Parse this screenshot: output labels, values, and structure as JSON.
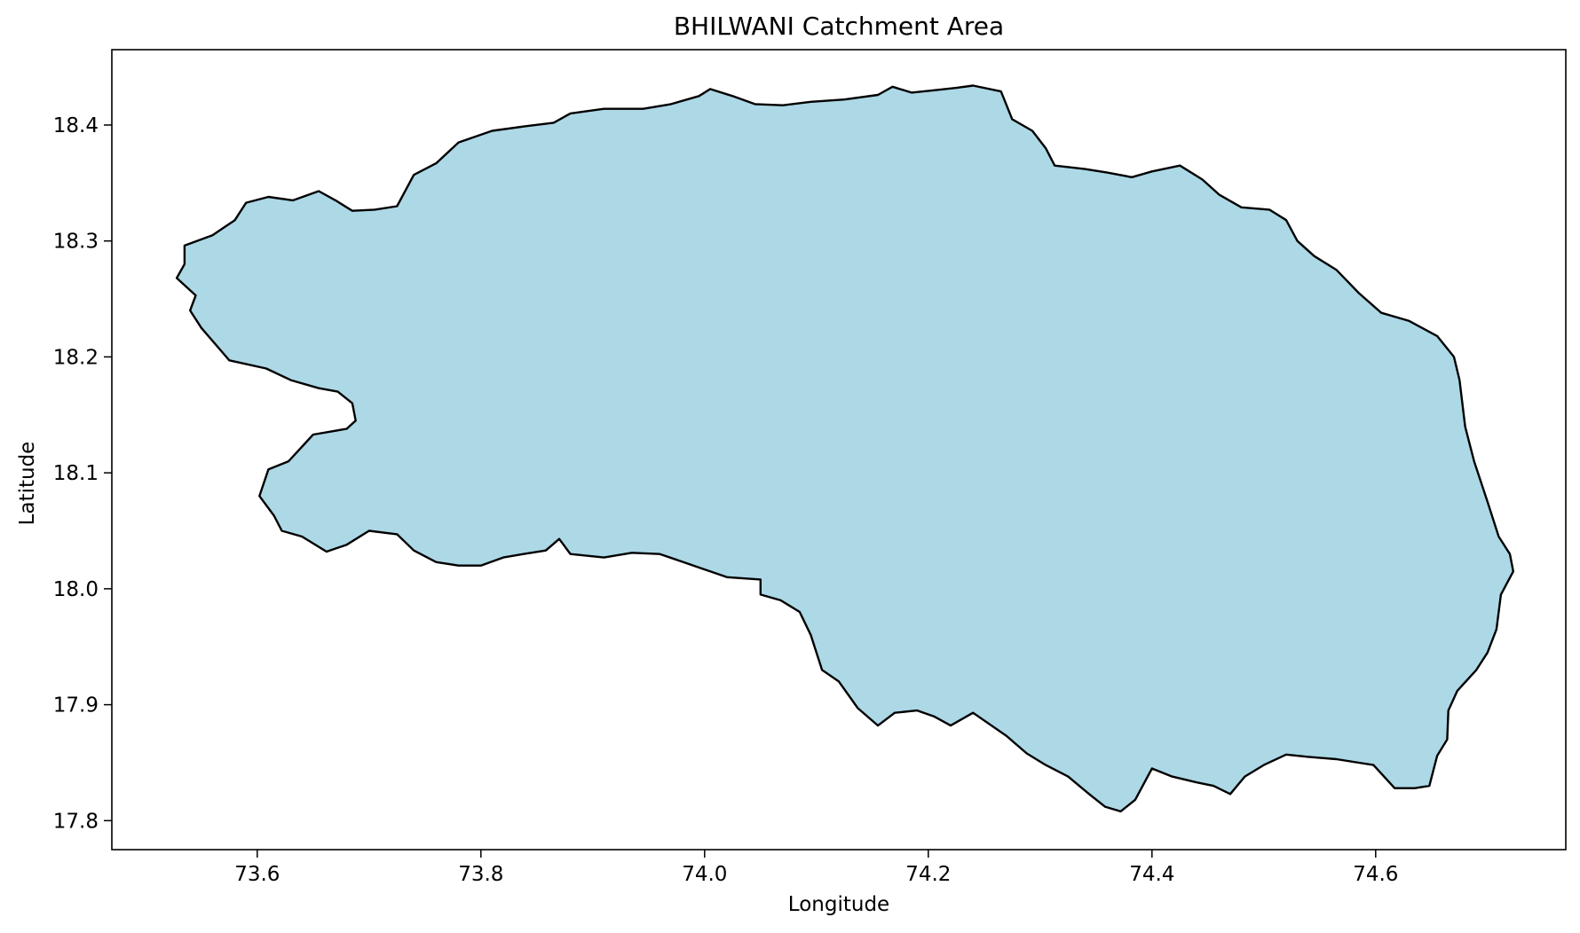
{
  "chart_data": {
    "type": "map",
    "title": "BHILWANI Catchment Area",
    "xlabel": "Longitude",
    "ylabel": "Latitude",
    "xlim": [
      73.47,
      74.77
    ],
    "ylim": [
      17.775,
      18.465
    ],
    "xticks": [
      73.6,
      73.8,
      74.0,
      74.2,
      74.4,
      74.6
    ],
    "yticks": [
      17.8,
      17.9,
      18.0,
      18.1,
      18.2,
      18.3,
      18.4
    ],
    "grid": false,
    "fill_color": "#add8e6",
    "edge_color": "#000000",
    "boundary": [
      [
        73.535,
        18.296
      ],
      [
        73.56,
        18.305
      ],
      [
        73.58,
        18.318
      ],
      [
        73.59,
        18.333
      ],
      [
        73.61,
        18.338
      ],
      [
        73.632,
        18.335
      ],
      [
        73.655,
        18.343
      ],
      [
        73.67,
        18.335
      ],
      [
        73.685,
        18.326
      ],
      [
        73.705,
        18.327
      ],
      [
        73.725,
        18.33
      ],
      [
        73.74,
        18.357
      ],
      [
        73.76,
        18.367
      ],
      [
        73.78,
        18.385
      ],
      [
        73.81,
        18.395
      ],
      [
        73.84,
        18.399
      ],
      [
        73.865,
        18.402
      ],
      [
        73.88,
        18.41
      ],
      [
        73.91,
        18.414
      ],
      [
        73.945,
        18.414
      ],
      [
        73.97,
        18.418
      ],
      [
        73.995,
        18.425
      ],
      [
        74.005,
        18.431
      ],
      [
        74.025,
        18.425
      ],
      [
        74.045,
        18.418
      ],
      [
        74.07,
        18.417
      ],
      [
        74.095,
        18.42
      ],
      [
        74.125,
        18.422
      ],
      [
        74.155,
        18.426
      ],
      [
        74.168,
        18.433
      ],
      [
        74.185,
        18.428
      ],
      [
        74.205,
        18.43
      ],
      [
        74.225,
        18.432
      ],
      [
        74.24,
        18.434
      ],
      [
        74.265,
        18.429
      ],
      [
        74.275,
        18.405
      ],
      [
        74.293,
        18.395
      ],
      [
        74.305,
        18.38
      ],
      [
        74.313,
        18.365
      ],
      [
        74.34,
        18.362
      ],
      [
        74.36,
        18.359
      ],
      [
        74.382,
        18.355
      ],
      [
        74.4,
        18.36
      ],
      [
        74.425,
        18.365
      ],
      [
        74.445,
        18.353
      ],
      [
        74.46,
        18.34
      ],
      [
        74.48,
        18.329
      ],
      [
        74.505,
        18.327
      ],
      [
        74.52,
        18.318
      ],
      [
        74.53,
        18.3
      ],
      [
        74.545,
        18.287
      ],
      [
        74.565,
        18.275
      ],
      [
        74.585,
        18.255
      ],
      [
        74.605,
        18.238
      ],
      [
        74.63,
        18.231
      ],
      [
        74.655,
        18.218
      ],
      [
        74.67,
        18.2
      ],
      [
        74.675,
        18.18
      ],
      [
        74.68,
        18.14
      ],
      [
        74.688,
        18.11
      ],
      [
        74.7,
        18.075
      ],
      [
        74.71,
        18.045
      ],
      [
        74.72,
        18.03
      ],
      [
        74.723,
        18.015
      ],
      [
        74.712,
        17.995
      ],
      [
        74.708,
        17.965
      ],
      [
        74.7,
        17.945
      ],
      [
        74.69,
        17.93
      ],
      [
        74.673,
        17.912
      ],
      [
        74.665,
        17.895
      ],
      [
        74.664,
        17.87
      ],
      [
        74.655,
        17.856
      ],
      [
        74.648,
        17.83
      ],
      [
        74.635,
        17.828
      ],
      [
        74.617,
        17.828
      ],
      [
        74.598,
        17.848
      ],
      [
        74.585,
        17.85
      ],
      [
        74.565,
        17.853
      ],
      [
        74.54,
        17.855
      ],
      [
        74.52,
        17.857
      ],
      [
        74.5,
        17.848
      ],
      [
        74.483,
        17.838
      ],
      [
        74.47,
        17.823
      ],
      [
        74.455,
        17.83
      ],
      [
        74.44,
        17.833
      ],
      [
        74.418,
        17.838
      ],
      [
        74.4,
        17.845
      ],
      [
        74.385,
        17.818
      ],
      [
        74.372,
        17.808
      ],
      [
        74.358,
        17.812
      ],
      [
        74.345,
        17.822
      ],
      [
        74.325,
        17.838
      ],
      [
        74.305,
        17.848
      ],
      [
        74.288,
        17.858
      ],
      [
        74.27,
        17.873
      ],
      [
        74.24,
        17.893
      ],
      [
        74.22,
        17.882
      ],
      [
        74.205,
        17.89
      ],
      [
        74.19,
        17.895
      ],
      [
        74.17,
        17.893
      ],
      [
        74.155,
        17.882
      ],
      [
        74.137,
        17.897
      ],
      [
        74.12,
        17.92
      ],
      [
        74.105,
        17.93
      ],
      [
        74.095,
        17.96
      ],
      [
        74.085,
        17.98
      ],
      [
        74.068,
        17.99
      ],
      [
        74.05,
        17.995
      ],
      [
        74.05,
        18.008
      ],
      [
        74.02,
        18.01
      ],
      [
        73.99,
        18.02
      ],
      [
        73.96,
        18.03
      ],
      [
        73.935,
        18.031
      ],
      [
        73.91,
        18.027
      ],
      [
        73.88,
        18.03
      ],
      [
        73.87,
        18.043
      ],
      [
        73.858,
        18.033
      ],
      [
        73.838,
        18.03
      ],
      [
        73.82,
        18.027
      ],
      [
        73.8,
        18.02
      ],
      [
        73.78,
        18.02
      ],
      [
        73.76,
        18.023
      ],
      [
        73.74,
        18.033
      ],
      [
        73.725,
        18.047
      ],
      [
        73.7,
        18.05
      ],
      [
        73.68,
        18.038
      ],
      [
        73.662,
        18.032
      ],
      [
        73.64,
        18.045
      ],
      [
        73.622,
        18.05
      ],
      [
        73.615,
        18.063
      ],
      [
        73.602,
        18.08
      ],
      [
        73.61,
        18.103
      ],
      [
        73.628,
        18.11
      ],
      [
        73.65,
        18.133
      ],
      [
        73.68,
        18.138
      ],
      [
        73.688,
        18.145
      ],
      [
        73.685,
        18.16
      ],
      [
        73.672,
        18.17
      ],
      [
        73.655,
        18.173
      ],
      [
        73.63,
        18.18
      ],
      [
        73.608,
        18.19
      ],
      [
        73.575,
        18.197
      ],
      [
        73.55,
        18.225
      ],
      [
        73.54,
        18.24
      ],
      [
        73.545,
        18.253
      ],
      [
        73.528,
        18.268
      ],
      [
        73.535,
        18.28
      ]
    ]
  }
}
